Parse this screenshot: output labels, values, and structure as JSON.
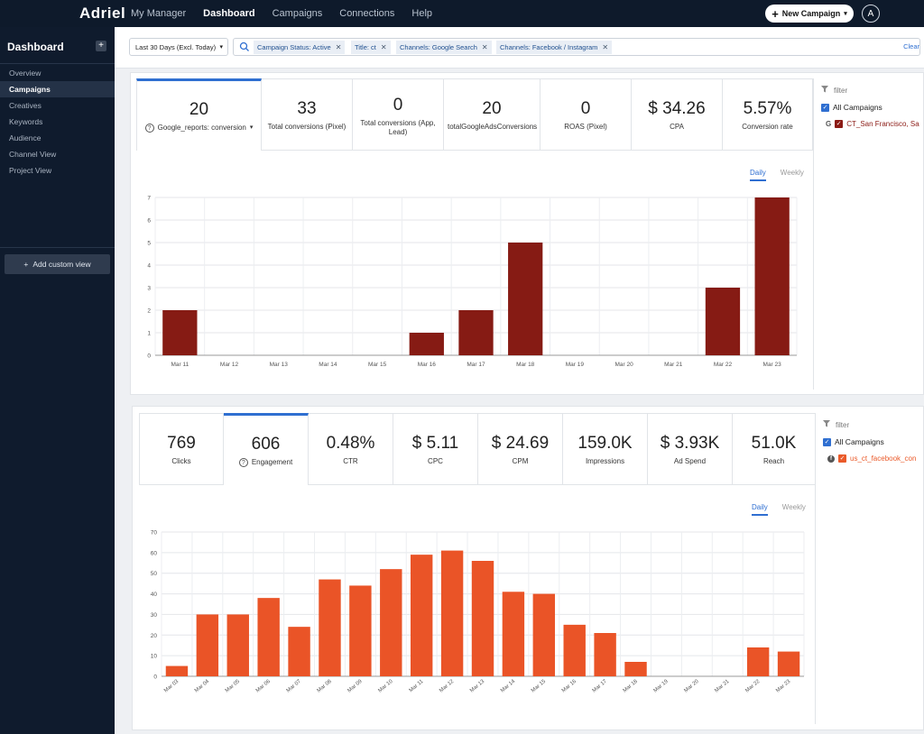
{
  "topbar": {
    "logo": "Adriel",
    "nav": [
      "My Manager",
      "Dashboard",
      "Campaigns",
      "Connections",
      "Help"
    ],
    "active_nav": "Dashboard",
    "new_campaign": "New Campaign",
    "avatar": "A"
  },
  "sidebar": {
    "title": "Dashboard",
    "items": [
      "Overview",
      "Campaigns",
      "Creatives",
      "Keywords",
      "Audience",
      "Channel View",
      "Project View"
    ],
    "active": "Campaigns",
    "add_view": "Add custom view"
  },
  "filters": {
    "date": "Last 30 Days (Excl. Today)",
    "chips": [
      "Campaign Status: Active",
      "Title: ct",
      "Channels: Google Search",
      "Channels: Facebook / Instagram"
    ],
    "clear": "Clear"
  },
  "panel1": {
    "stats": [
      {
        "value": "20",
        "label": "Google_reports: conversion"
      },
      {
        "value": "33",
        "label": "Total conversions (Pixel)"
      },
      {
        "value": "0",
        "label": "Total conversions (App, Lead)"
      },
      {
        "value": "20",
        "label": "totalGoogleAdsConversions"
      },
      {
        "value": "0",
        "label": "ROAS (Pixel)"
      },
      {
        "value": "$ 34.26",
        "label": "CPA"
      },
      {
        "value": "5.57%",
        "label": "Conversion rate"
      }
    ],
    "tabs": {
      "daily": "Daily",
      "weekly": "Weekly"
    },
    "filter": {
      "label": "filter",
      "all": "All Campaigns",
      "campaign": "CT_San Francisco, Sa",
      "campaign_color": "#8b1a14"
    }
  },
  "panel2": {
    "stats": [
      {
        "value": "769",
        "label": "Clicks"
      },
      {
        "value": "606",
        "label": "Engagement"
      },
      {
        "value": "0.48%",
        "label": "CTR"
      },
      {
        "value": "$ 5.11",
        "label": "CPC"
      },
      {
        "value": "$ 24.69",
        "label": "CPM"
      },
      {
        "value": "159.0K",
        "label": "Impressions"
      },
      {
        "value": "$ 3.93K",
        "label": "Ad Spend"
      },
      {
        "value": "51.0K",
        "label": "Reach"
      }
    ],
    "tabs": {
      "daily": "Daily",
      "weekly": "Weekly"
    },
    "filter": {
      "label": "filter",
      "all": "All Campaigns",
      "campaign": "us_ct_facebook_con",
      "campaign_color": "#ea5a2a"
    }
  },
  "chart_data": [
    {
      "type": "bar",
      "color": "#861b14",
      "categories": [
        "Mar 11",
        "Mar 12",
        "Mar 13",
        "Mar 14",
        "Mar 15",
        "Mar 16",
        "Mar 17",
        "Mar 18",
        "Mar 19",
        "Mar 20",
        "Mar 21",
        "Mar 22",
        "Mar 23"
      ],
      "values": [
        2,
        0,
        0,
        0,
        0,
        1,
        2,
        5,
        0,
        0,
        0,
        3,
        7
      ],
      "ylim": [
        0,
        7
      ],
      "yticks": [
        0,
        1,
        2,
        3,
        4,
        5,
        6,
        7
      ],
      "grid": true
    },
    {
      "type": "bar",
      "color": "#ea5427",
      "categories": [
        "Mar 03",
        "Mar 04",
        "Mar 05",
        "Mar 06",
        "Mar 07",
        "Mar 08",
        "Mar 09",
        "Mar 10",
        "Mar 11",
        "Mar 12",
        "Mar 13",
        "Mar 14",
        "Mar 15",
        "Mar 16",
        "Mar 17",
        "Mar 18",
        "Mar 19",
        "Mar 20",
        "Mar 21",
        "Mar 22",
        "Mar 23"
      ],
      "values": [
        5,
        30,
        30,
        38,
        24,
        47,
        44,
        52,
        59,
        61,
        56,
        41,
        40,
        25,
        21,
        7,
        0,
        0,
        0,
        14,
        12
      ],
      "ylim": [
        0,
        70
      ],
      "yticks": [
        0,
        10,
        20,
        30,
        40,
        50,
        60,
        70
      ],
      "grid": true
    }
  ]
}
